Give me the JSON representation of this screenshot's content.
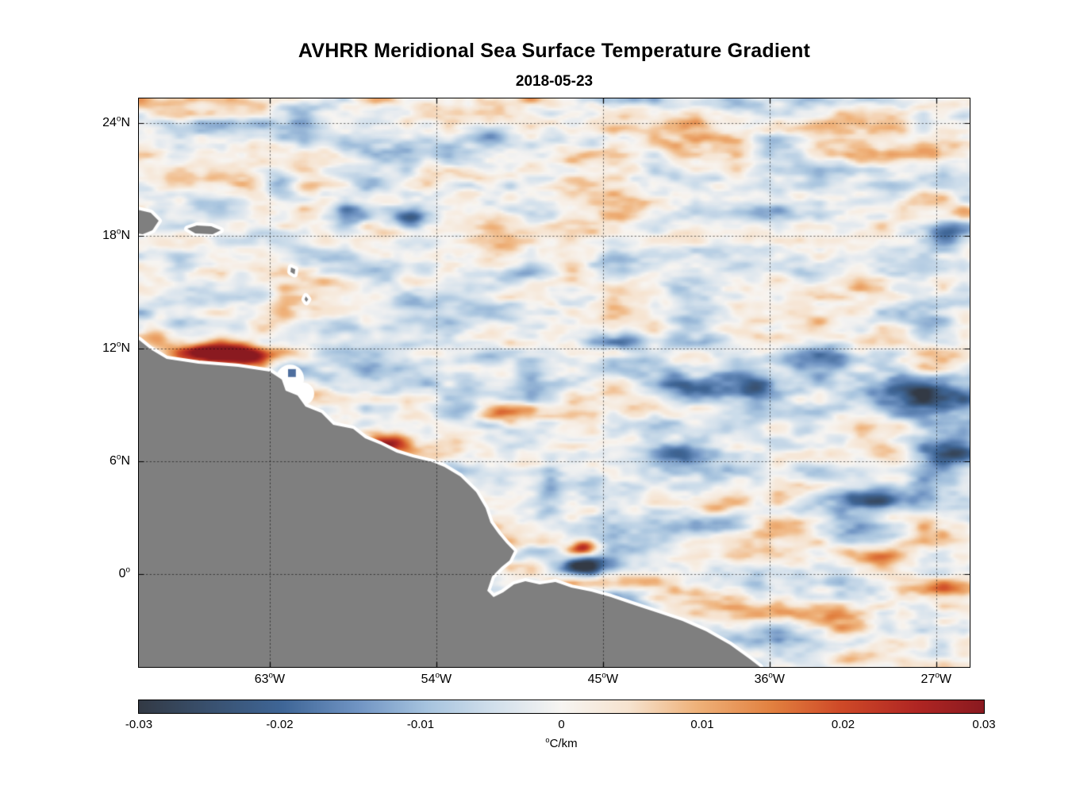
{
  "chart_data": {
    "type": "heatmap",
    "title": "AVHRR Meridional Sea Surface Temperature Gradient",
    "subtitle": "2018-05-23",
    "lon_range": [
      -70.07,
      -25.19
    ],
    "lat_range": [
      -4.94,
      25.31
    ],
    "x_ticks": [
      {
        "lon": -63,
        "label": "63°W"
      },
      {
        "lon": -54,
        "label": "54°W"
      },
      {
        "lon": -45,
        "label": "45°W"
      },
      {
        "lon": -36,
        "label": "36°W"
      },
      {
        "lon": -27,
        "label": "27°W"
      }
    ],
    "y_ticks": [
      {
        "lat": 24,
        "label": "24°N"
      },
      {
        "lat": 18,
        "label": "18°N"
      },
      {
        "lat": 12,
        "label": "12°N"
      },
      {
        "lat": 6,
        "label": "6°N"
      },
      {
        "lat": 0,
        "label": "0°"
      }
    ],
    "grid": {
      "style": "dotted",
      "color": "rgba(0,0,0,0.55)"
    },
    "colorbar": {
      "min": -0.03,
      "max": 0.03,
      "ticks": [
        "-0.03",
        "-0.02",
        "-0.01",
        "0",
        "0.01",
        "0.02",
        "0.03"
      ],
      "label": "°C/km",
      "stops": [
        [
          0.0,
          "#333a45"
        ],
        [
          0.08,
          "#39506d"
        ],
        [
          0.17,
          "#3f6697"
        ],
        [
          0.26,
          "#7195c4"
        ],
        [
          0.34,
          "#a6c3de"
        ],
        [
          0.42,
          "#d2e0ec"
        ],
        [
          0.5,
          "#f7f5f2"
        ],
        [
          0.58,
          "#f6e3cf"
        ],
        [
          0.66,
          "#efb27a"
        ],
        [
          0.75,
          "#e2803f"
        ],
        [
          0.83,
          "#cf4a28"
        ],
        [
          0.92,
          "#b02623"
        ],
        [
          1.0,
          "#8a1a20"
        ]
      ]
    },
    "land": {
      "color": "#7f7f7f",
      "coast_halo_color": "#ffffff",
      "polygons": {
        "south_america_coast": [
          [
            -70.07,
            12.47
          ],
          [
            -69.43,
            11.96
          ],
          [
            -68.57,
            11.45
          ],
          [
            -66.85,
            11.2
          ],
          [
            -64.71,
            11.03
          ],
          [
            -63.0,
            10.78
          ],
          [
            -62.35,
            10.35
          ],
          [
            -62.14,
            9.76
          ],
          [
            -61.5,
            9.51
          ],
          [
            -61.07,
            8.92
          ],
          [
            -60.21,
            8.58
          ],
          [
            -59.57,
            7.95
          ],
          [
            -58.5,
            7.73
          ],
          [
            -57.85,
            7.23
          ],
          [
            -57.0,
            6.89
          ],
          [
            -56.14,
            6.47
          ],
          [
            -55.28,
            6.21
          ],
          [
            -54.21,
            5.96
          ],
          [
            -53.57,
            5.71
          ],
          [
            -52.71,
            5.2
          ],
          [
            -51.85,
            4.36
          ],
          [
            -51.34,
            3.51
          ],
          [
            -51.08,
            2.75
          ],
          [
            -50.65,
            2.16
          ],
          [
            -50.22,
            1.65
          ],
          [
            -49.8,
            1.23
          ],
          [
            -50.05,
            0.72
          ],
          [
            -50.48,
            0.38
          ],
          [
            -50.99,
            -0.12
          ],
          [
            -51.25,
            -0.88
          ],
          [
            -50.91,
            -1.22
          ],
          [
            -50.39,
            -0.97
          ],
          [
            -49.8,
            -0.55
          ],
          [
            -49.19,
            -0.38
          ],
          [
            -48.42,
            -0.55
          ],
          [
            -47.57,
            -0.42
          ],
          [
            -46.71,
            -0.72
          ],
          [
            -45.64,
            -0.93
          ],
          [
            -44.57,
            -1.22
          ],
          [
            -43.28,
            -1.65
          ],
          [
            -42.0,
            -2.07
          ],
          [
            -40.71,
            -2.49
          ],
          [
            -39.43,
            -3.04
          ],
          [
            -38.14,
            -3.76
          ],
          [
            -37.07,
            -4.52
          ],
          [
            -36.51,
            -4.94
          ],
          [
            -36.2,
            -5.9
          ],
          [
            -71.5,
            -5.9
          ],
          [
            -71.5,
            12.6
          ]
        ],
        "hispaniola_east": [
          [
            -70.6,
            19.5
          ],
          [
            -69.43,
            19.23
          ],
          [
            -69.0,
            18.8
          ],
          [
            -69.34,
            18.3
          ],
          [
            -69.86,
            18.09
          ],
          [
            -70.6,
            18.2
          ]
        ],
        "puerto_rico": [
          [
            -67.45,
            18.38
          ],
          [
            -66.94,
            18.55
          ],
          [
            -66.17,
            18.51
          ],
          [
            -65.65,
            18.3
          ],
          [
            -66.08,
            18.09
          ],
          [
            -67.02,
            18.13
          ]
        ],
        "lesser_antilles_1": [
          [
            -61.85,
            16.32
          ],
          [
            -61.62,
            16.22
          ],
          [
            -61.66,
            15.95
          ],
          [
            -61.88,
            16.08
          ]
        ],
        "lesser_antilles_2": [
          [
            -61.05,
            14.78
          ],
          [
            -60.92,
            14.62
          ],
          [
            -61.02,
            14.48
          ],
          [
            -61.12,
            14.62
          ]
        ]
      },
      "gap_patches": [
        {
          "lon": -61.9,
          "lat": 10.4,
          "r": 0.75
        },
        {
          "lon": -61.2,
          "lat": 9.6,
          "r": 0.6
        }
      ],
      "islet_marks": [
        {
          "lon": -61.8,
          "lat": 10.7,
          "w": 0.42,
          "h": 0.42,
          "color": "#4e6e9e"
        }
      ]
    },
    "field": {
      "units": "degC/km",
      "base": -0.0015,
      "noise_octaves": [
        {
          "cw": 100,
          "ch": 34,
          "amp": 0.0075,
          "seed": 11
        },
        {
          "cw": 50,
          "ch": 18,
          "amp": 0.006,
          "seed": 23
        },
        {
          "cw": 26,
          "ch": 10,
          "amp": 0.0042,
          "seed": 37
        },
        {
          "cw": 13,
          "ch": 6,
          "amp": 0.0022,
          "seed": 51
        }
      ],
      "features": [
        {
          "lon": -69.4,
          "lat": 12.5,
          "amp": 0.015,
          "sx": 1.2,
          "sy": 0.35
        },
        {
          "lon": -66.9,
          "lat": 11.7,
          "amp": 0.02,
          "sx": 1.5,
          "sy": 0.4
        },
        {
          "lon": -65.3,
          "lat": 11.75,
          "amp": 0.036,
          "sx": 1.4,
          "sy": 0.38
        },
        {
          "lon": -63.9,
          "lat": 11.4,
          "amp": 0.02,
          "sx": 0.8,
          "sy": 0.3
        },
        {
          "lon": -56.7,
          "lat": 6.97,
          "amp": 0.028,
          "sx": 0.8,
          "sy": 0.35
        },
        {
          "lon": -55.0,
          "lat": 8.4,
          "amp": 0.012,
          "sx": 1.0,
          "sy": 0.5
        },
        {
          "lon": -50.1,
          "lat": 8.6,
          "amp": 0.012,
          "sx": 1.1,
          "sy": 0.4
        },
        {
          "lon": -46.0,
          "lat": 1.4,
          "amp": 0.028,
          "sx": 0.55,
          "sy": 0.3
        },
        {
          "lon": -46.1,
          "lat": 0.45,
          "amp": -0.032,
          "sx": 0.8,
          "sy": 0.38
        },
        {
          "lon": -44.1,
          "lat": -1.2,
          "amp": -0.016,
          "sx": 1.2,
          "sy": 0.4
        },
        {
          "lon": -40.3,
          "lat": 9.85,
          "amp": -0.022,
          "sx": 1.8,
          "sy": 0.5
        },
        {
          "lon": -36.9,
          "lat": 10.1,
          "amp": -0.018,
          "sx": 1.0,
          "sy": 0.45
        },
        {
          "lon": -33.4,
          "lat": 11.5,
          "amp": -0.02,
          "sx": 1.6,
          "sy": 0.7
        },
        {
          "lon": -27.8,
          "lat": 9.4,
          "amp": -0.026,
          "sx": 1.9,
          "sy": 0.9
        },
        {
          "lon": -26.3,
          "lat": 6.6,
          "amp": -0.02,
          "sx": 1.0,
          "sy": 0.6
        },
        {
          "lon": -30.4,
          "lat": 3.93,
          "amp": -0.016,
          "sx": 1.6,
          "sy": 0.5
        },
        {
          "lon": -26.5,
          "lat": 17.9,
          "amp": -0.014,
          "sx": 0.9,
          "sy": 0.5
        },
        {
          "lon": -62.6,
          "lat": 20.8,
          "amp": -0.018,
          "sx": 0.8,
          "sy": 0.5
        },
        {
          "lon": -58.5,
          "lat": 19.1,
          "amp": -0.015,
          "sx": 0.9,
          "sy": 0.5
        },
        {
          "lon": -55.5,
          "lat": 18.9,
          "amp": -0.02,
          "sx": 0.6,
          "sy": 0.45
        },
        {
          "lon": -51.0,
          "lat": 23.4,
          "amp": -0.014,
          "sx": 0.7,
          "sy": 0.4
        },
        {
          "lon": -49.7,
          "lat": 16.0,
          "amp": -0.012,
          "sx": 1.2,
          "sy": 0.4
        },
        {
          "lon": -44.3,
          "lat": 12.4,
          "amp": -0.014,
          "sx": 1.0,
          "sy": 0.35
        },
        {
          "lon": -47.9,
          "lat": 4.8,
          "amp": -0.014,
          "sx": 0.5,
          "sy": 0.9
        },
        {
          "lon": -40.7,
          "lat": 6.3,
          "amp": -0.012,
          "sx": 1.2,
          "sy": 0.4
        },
        {
          "lon": -30.4,
          "lat": 0.97,
          "amp": 0.014,
          "sx": 1.4,
          "sy": 0.4
        },
        {
          "lon": -26.6,
          "lat": -0.9,
          "amp": 0.016,
          "sx": 1.3,
          "sy": 0.45
        },
        {
          "lon": -33.0,
          "lat": -2.3,
          "amp": 0.012,
          "sx": 1.5,
          "sy": 0.4
        },
        {
          "lon": -38.8,
          "lat": 3.5,
          "amp": 0.01,
          "sx": 1.0,
          "sy": 0.35
        }
      ]
    }
  }
}
